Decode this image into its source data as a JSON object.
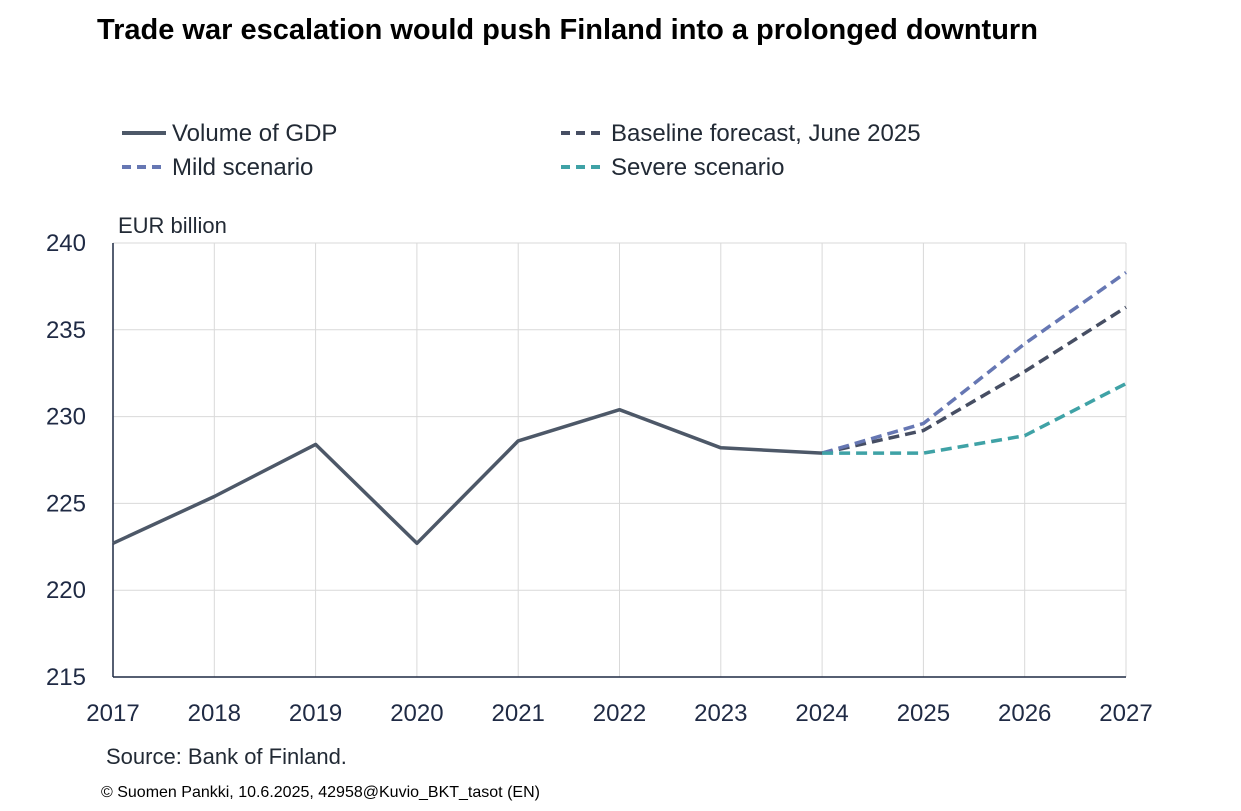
{
  "title": "Trade war escalation would push Finland into a prolonged downturn",
  "source": "Source:  Bank of Finland.",
  "copyright": "© Suomen Pankki, 10.6.2025, 42958@Kuvio_BKT_tasot (EN)",
  "chart_data": {
    "type": "line",
    "title": "Trade war escalation would push Finland into a prolonged downturn",
    "ylabel": "EUR billion",
    "xlabel": "",
    "x": [
      "2017",
      "2018",
      "2019",
      "2020",
      "2021",
      "2022",
      "2023",
      "2024",
      "2025",
      "2026",
      "2027"
    ],
    "ylim": [
      215,
      240
    ],
    "yticks": [
      215,
      220,
      225,
      230,
      235,
      240
    ],
    "grid": true,
    "legend_position": "top",
    "series": [
      {
        "name": "Volume of GDP",
        "color": "#4d5868",
        "style": "solid",
        "points": [
          {
            "x": "2017",
            "y": 222.7
          },
          {
            "x": "2018",
            "y": 225.4
          },
          {
            "x": "2019",
            "y": 228.4
          },
          {
            "x": "2020",
            "y": 222.7
          },
          {
            "x": "2021",
            "y": 228.6
          },
          {
            "x": "2022",
            "y": 230.4
          },
          {
            "x": "2023",
            "y": 228.2
          },
          {
            "x": "2024",
            "y": 227.9
          }
        ]
      },
      {
        "name": "Baseline forecast, June 2025",
        "color": "#464e63",
        "style": "dashed",
        "points": [
          {
            "x": "2024",
            "y": 227.9
          },
          {
            "x": "2025",
            "y": 229.2
          },
          {
            "x": "2026",
            "y": 232.6
          },
          {
            "x": "2027",
            "y": 236.3
          }
        ]
      },
      {
        "name": "Mild scenario",
        "color": "#6677b3",
        "style": "dashed",
        "points": [
          {
            "x": "2024",
            "y": 227.9
          },
          {
            "x": "2025",
            "y": 229.6
          },
          {
            "x": "2026",
            "y": 234.2
          },
          {
            "x": "2027",
            "y": 238.3
          }
        ]
      },
      {
        "name": "Severe scenario",
        "color": "#3fa2a6",
        "style": "dashed",
        "points": [
          {
            "x": "2024",
            "y": 227.9
          },
          {
            "x": "2025",
            "y": 227.9
          },
          {
            "x": "2026",
            "y": 228.9
          },
          {
            "x": "2027",
            "y": 231.9
          }
        ]
      }
    ]
  }
}
